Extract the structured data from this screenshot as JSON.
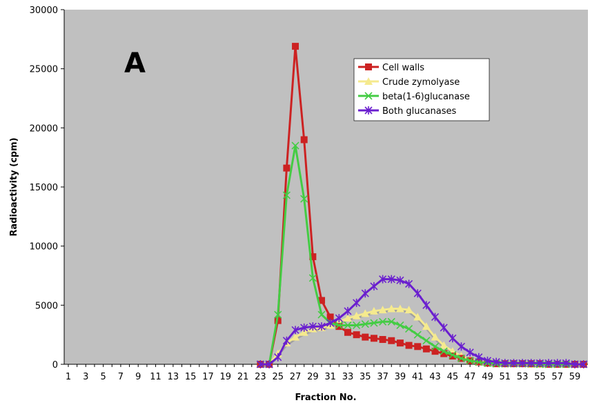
{
  "chart_data": {
    "type": "line",
    "panel_label": "A",
    "xlabel": "Fraction No.",
    "ylabel": "Radioactivity (cpm)",
    "xlim": [
      1,
      60
    ],
    "ylim": [
      0,
      30000
    ],
    "yticks": [
      0,
      5000,
      10000,
      15000,
      20000,
      25000,
      30000
    ],
    "xticks": [
      1,
      3,
      5,
      7,
      9,
      11,
      13,
      15,
      17,
      19,
      21,
      23,
      25,
      27,
      29,
      31,
      33,
      35,
      37,
      39,
      41,
      43,
      45,
      47,
      49,
      51,
      53,
      55,
      57,
      59
    ],
    "grid": false,
    "plot_background": "#c0c0c0",
    "legend_position": "top-right",
    "series": [
      {
        "name": "Cell walls",
        "color": "#cc2222",
        "marker": "square",
        "x": [
          23,
          24,
          25,
          26,
          27,
          28,
          29,
          30,
          31,
          32,
          33,
          34,
          35,
          36,
          37,
          38,
          39,
          40,
          41,
          42,
          43,
          44,
          45,
          46,
          47,
          48,
          49,
          50,
          51,
          52,
          53,
          54,
          55,
          56,
          57,
          58,
          59,
          60
        ],
        "values": [
          0,
          0,
          3700,
          16600,
          26900,
          19000,
          9100,
          5400,
          4000,
          3200,
          2700,
          2500,
          2300,
          2200,
          2100,
          2000,
          1800,
          1600,
          1500,
          1300,
          1100,
          900,
          700,
          500,
          300,
          200,
          100,
          50,
          50,
          50,
          50,
          50,
          50,
          0,
          0,
          0,
          0,
          0
        ]
      },
      {
        "name": "Crude zymolyase",
        "color": "#f5ea8e",
        "marker": "triangle",
        "x": [
          23,
          24,
          25,
          26,
          27,
          28,
          29,
          30,
          31,
          32,
          33,
          34,
          35,
          36,
          37,
          38,
          39,
          40,
          41,
          42,
          43,
          44,
          45,
          46,
          47,
          48,
          49,
          50,
          51,
          52,
          53,
          54,
          55,
          56,
          57,
          58,
          59,
          60
        ],
        "values": [
          0,
          0,
          900,
          1800,
          2300,
          2700,
          3000,
          3100,
          3300,
          3600,
          3900,
          4100,
          4300,
          4500,
          4600,
          4700,
          4700,
          4600,
          4000,
          3200,
          2300,
          1600,
          1100,
          700,
          400,
          200,
          100,
          50,
          50,
          50,
          50,
          0,
          0,
          0,
          0,
          0,
          0,
          0
        ]
      },
      {
        "name": "beta(1-6)glucanase",
        "color": "#44cc44",
        "marker": "x",
        "x": [
          23,
          24,
          25,
          26,
          27,
          28,
          29,
          30,
          31,
          32,
          33,
          34,
          35,
          36,
          37,
          38,
          39,
          40,
          41,
          42,
          43,
          44,
          45,
          46,
          47,
          48,
          49,
          50,
          51,
          52,
          53,
          54,
          55,
          56,
          57,
          58,
          59,
          60
        ],
        "values": [
          0,
          0,
          4200,
          14300,
          18500,
          14000,
          7300,
          4200,
          3500,
          3300,
          3300,
          3300,
          3400,
          3500,
          3600,
          3600,
          3300,
          3000,
          2500,
          2000,
          1500,
          1100,
          800,
          500,
          300,
          200,
          100,
          50,
          50,
          50,
          50,
          50,
          0,
          0,
          0,
          0,
          0,
          0
        ]
      },
      {
        "name": "Both glucanases",
        "color": "#6a1fcf",
        "marker": "star",
        "x": [
          23,
          24,
          25,
          26,
          27,
          28,
          29,
          30,
          31,
          32,
          33,
          34,
          35,
          36,
          37,
          38,
          39,
          40,
          41,
          42,
          43,
          44,
          45,
          46,
          47,
          48,
          49,
          50,
          51,
          52,
          53,
          54,
          55,
          56,
          57,
          58,
          59,
          60
        ],
        "values": [
          0,
          0,
          600,
          2000,
          2900,
          3100,
          3200,
          3200,
          3500,
          3900,
          4500,
          5200,
          6000,
          6600,
          7200,
          7200,
          7100,
          6800,
          6000,
          5000,
          4000,
          3100,
          2200,
          1500,
          1000,
          600,
          300,
          200,
          100,
          100,
          100,
          100,
          100,
          100,
          100,
          100,
          0,
          0
        ]
      }
    ]
  }
}
